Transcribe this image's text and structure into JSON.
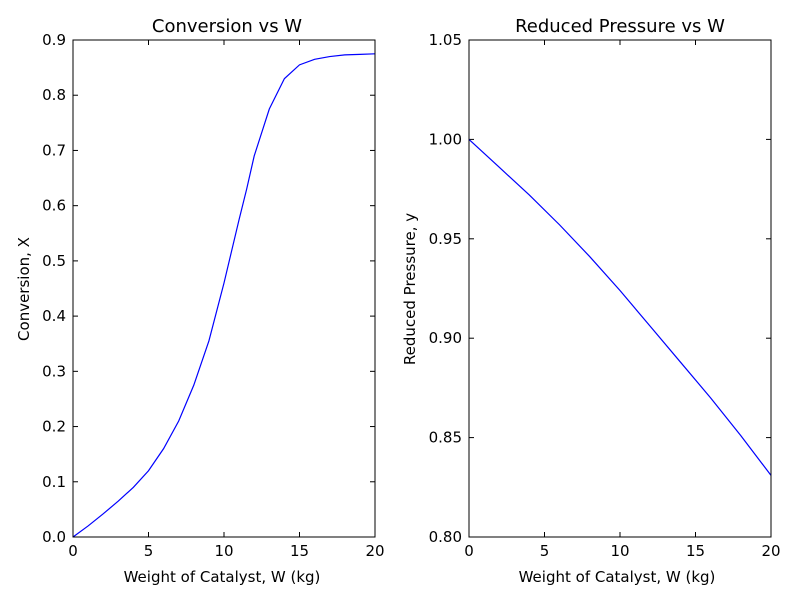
{
  "chart_data": [
    {
      "type": "line",
      "title": "Conversion vs W",
      "xlabel": "Weight of Catalyst, W (kg)",
      "ylabel": "Conversion, X",
      "xlim": [
        0,
        20
      ],
      "ylim": [
        0,
        0.9
      ],
      "xticks": [
        0,
        5,
        10,
        15,
        20
      ],
      "xtick_labels": [
        "0",
        "5",
        "10",
        "15",
        "20"
      ],
      "yticks": [
        0,
        0.1,
        0.2,
        0.3,
        0.4,
        0.5,
        0.6,
        0.7,
        0.8,
        0.9
      ],
      "ytick_labels": [
        "0.0",
        "0.1",
        "0.2",
        "0.3",
        "0.4",
        "0.5",
        "0.6",
        "0.7",
        "0.8",
        "0.9"
      ],
      "grid": false,
      "color": "#0000ff",
      "series": [
        {
          "x": [
            0,
            1,
            2,
            3,
            4,
            5,
            6,
            7,
            8,
            9,
            10,
            11,
            11.5,
            12,
            13,
            14,
            15,
            16,
            17,
            18,
            19,
            20
          ],
          "y": [
            0,
            0.02,
            0.042,
            0.065,
            0.09,
            0.12,
            0.16,
            0.21,
            0.275,
            0.355,
            0.46,
            0.575,
            0.63,
            0.69,
            0.775,
            0.83,
            0.855,
            0.865,
            0.87,
            0.873,
            0.874,
            0.875
          ]
        }
      ]
    },
    {
      "type": "line",
      "title": "Reduced Pressure vs W",
      "xlabel": "Weight of Catalyst, W (kg)",
      "ylabel": "Reduced Pressure, y",
      "xlim": [
        0,
        20
      ],
      "ylim": [
        0.8,
        1.05
      ],
      "xticks": [
        0,
        5,
        10,
        15,
        20
      ],
      "xtick_labels": [
        "0",
        "5",
        "10",
        "15",
        "20"
      ],
      "yticks": [
        0.8,
        0.85,
        0.9,
        0.95,
        1.0,
        1.05
      ],
      "ytick_labels": [
        "0.80",
        "0.85",
        "0.90",
        "0.95",
        "1.00",
        "1.05"
      ],
      "grid": false,
      "color": "#0000ff",
      "series": [
        {
          "x": [
            0,
            2,
            4,
            6,
            8,
            10,
            12,
            14,
            16,
            18,
            20
          ],
          "y": [
            1.0,
            0.986,
            0.972,
            0.957,
            0.941,
            0.924,
            0.906,
            0.888,
            0.87,
            0.851,
            0.831
          ]
        }
      ]
    }
  ]
}
